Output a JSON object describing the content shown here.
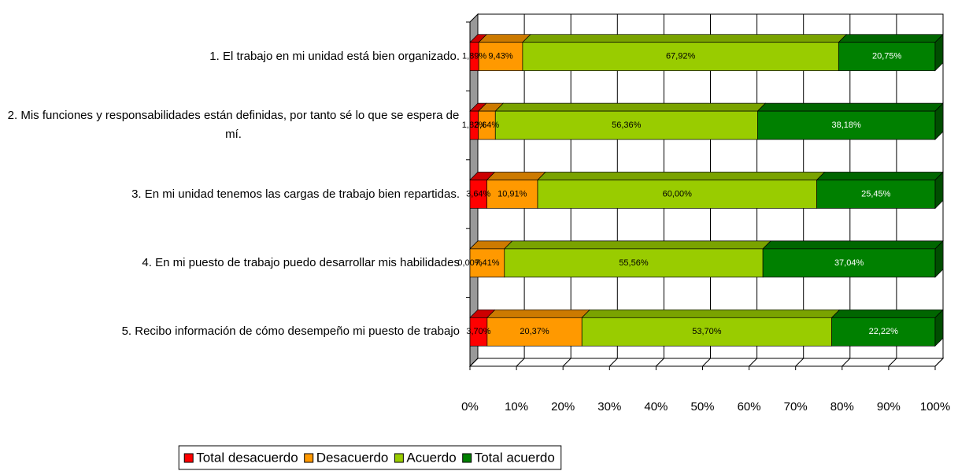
{
  "chart_data": {
    "type": "stacked-bar-horizontal-3d",
    "categories": [
      "1. El trabajo en mi unidad está bien organizado.",
      "2. Mis funciones y responsabilidades están definidas, por tanto sé lo que se espera de mí.",
      "3. En mi unidad tenemos las cargas de trabajo bien repartidas.",
      "4. En mi puesto de trabajo puedo desarrollar mis habilidades",
      "5. Recibo información de cómo desempeño mi puesto de trabajo"
    ],
    "series": [
      {
        "name": "Total desacuerdo",
        "color": "#ff0000",
        "values": [
          1.89,
          1.82,
          3.64,
          0.0,
          3.7
        ],
        "value_labels": [
          "1,89%",
          "1,82%",
          "3,64%",
          "0,00%",
          "3,70%"
        ]
      },
      {
        "name": "Desacuerdo",
        "color": "#ff9900",
        "values": [
          9.43,
          3.64,
          10.91,
          7.41,
          20.37
        ],
        "value_labels": [
          "9,43%",
          "3,64%",
          "10,91%",
          "7,41%",
          "20,37%"
        ]
      },
      {
        "name": "Acuerdo",
        "color": "#99cc00",
        "values": [
          67.92,
          56.36,
          60.0,
          55.56,
          53.7
        ],
        "value_labels": [
          "67,92%",
          "56,36%",
          "60,00%",
          "55,56%",
          "53,70%"
        ]
      },
      {
        "name": "Total acuerdo",
        "color": "#008000",
        "values": [
          20.75,
          38.18,
          25.45,
          37.04,
          22.22
        ],
        "value_labels": [
          "20,75%",
          "38,18%",
          "25,45%",
          "37,04%",
          "22,22%"
        ]
      }
    ],
    "xlim": [
      0,
      100
    ],
    "xticks": [
      {
        "value": 0,
        "label": "0%"
      },
      {
        "value": 10,
        "label": "10%"
      },
      {
        "value": 20,
        "label": "20%"
      },
      {
        "value": 30,
        "label": "30%"
      },
      {
        "value": 40,
        "label": "40%"
      },
      {
        "value": 50,
        "label": "50%"
      },
      {
        "value": 60,
        "label": "60%"
      },
      {
        "value": 70,
        "label": "70%"
      },
      {
        "value": 80,
        "label": "80%"
      },
      {
        "value": 90,
        "label": "90%"
      },
      {
        "value": 100,
        "label": "100%"
      }
    ],
    "grid": true,
    "legend": "bottom"
  }
}
